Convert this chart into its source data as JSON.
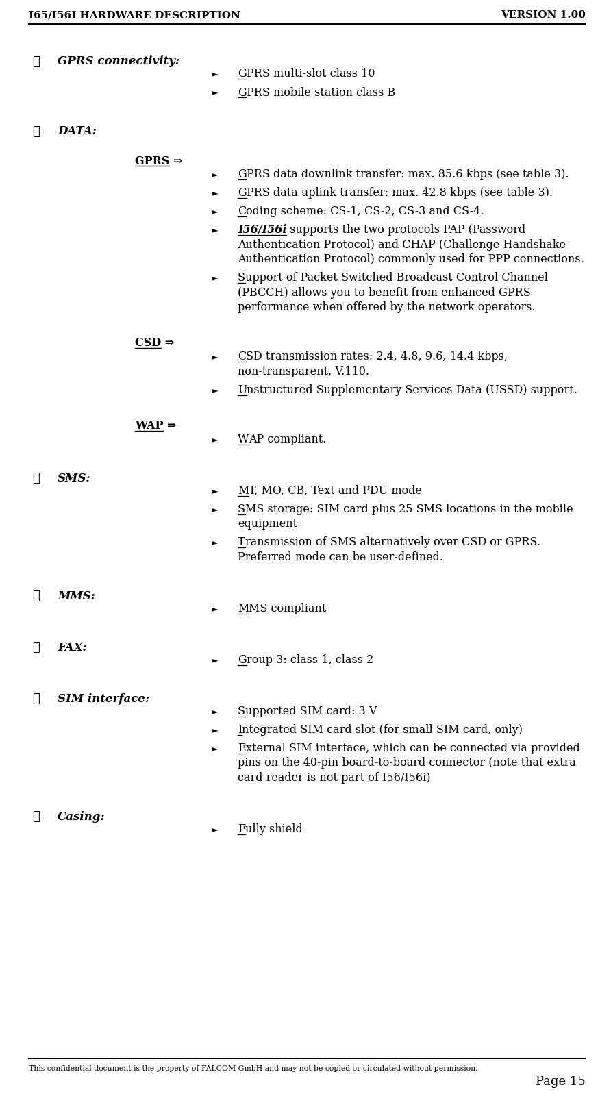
{
  "header_left": "I65/I56I HARDWARE DESCRIPTION",
  "header_right": "VERSION 1.00",
  "footer_note": "This confidential document is the property of FALCOM GmbH and may not be copied or circulated without permission.",
  "footer_page": "Page 15",
  "background_color": "#ffffff",
  "text_color": "#000000",
  "font_family": "DejaVu Serif",
  "header_fontsize": 11,
  "body_fontsize": 11.5,
  "sub_header_fontsize": 11.5,
  "sections": [
    {
      "type": "section_header",
      "text": "GPRS connectivity:"
    },
    {
      "type": "bullet",
      "text": "GPRS multi-slot class 10",
      "underline_first": 1
    },
    {
      "type": "bullet",
      "text": "GPRS mobile station class B",
      "underline_first": 1
    },
    {
      "type": "section_header",
      "text": "DATA:"
    },
    {
      "type": "sub_header",
      "text": "GPRS ⇒"
    },
    {
      "type": "bullet",
      "text": "GPRS data downlink transfer: max. 85.6 kbps (see table 3).",
      "underline_first": 1
    },
    {
      "type": "bullet",
      "text": "GPRS data uplink transfer: max. 42.8 kbps (see table 3).",
      "underline_first": 1
    },
    {
      "type": "bullet",
      "text": "Coding scheme: CS-1, CS-2, CS-3 and CS-4.",
      "underline_first": 1
    },
    {
      "type": "bullet",
      "text": "I56/I56i  supports the two protocols PAP (Password Authentication Protocol) and CHAP (Challenge Handshake Authentication Protocol) commonly used for PPP connections.",
      "underline_first_word": "I56/I56i",
      "italic_first_word": true
    },
    {
      "type": "bullet",
      "text": "Support of Packet Switched Broadcast Control Channel (PBCCH) allows you to benefit from enhanced GPRS performance when offered by the network operators.",
      "underline_first": 1
    },
    {
      "type": "sub_header",
      "text": "CSD ⇒"
    },
    {
      "type": "bullet",
      "text": "CSD transmission rates: 2.4, 4.8, 9.6, 14.4 kbps, non-transparent, V.110.",
      "underline_first": 1
    },
    {
      "type": "bullet",
      "text": "Unstructured Supplementary Services Data (USSD) support.",
      "underline_first": 1
    },
    {
      "type": "sub_header",
      "text": "WAP ⇒"
    },
    {
      "type": "bullet",
      "text": "WAP compliant.",
      "underline_first": 1
    },
    {
      "type": "section_header",
      "text": "SMS:"
    },
    {
      "type": "bullet",
      "text": "MT, MO, CB, Text and PDU mode",
      "underline_first": 1
    },
    {
      "type": "bullet",
      "text": "SMS storage: SIM card plus 25 SMS locations in the mobile equipment",
      "underline_first": 1
    },
    {
      "type": "bullet",
      "text": "Transmission of SMS alternatively over CSD or GPRS. Preferred mode can be user-defined.",
      "underline_first": 1
    },
    {
      "type": "section_header",
      "text": "MMS:"
    },
    {
      "type": "bullet",
      "text": "MMS compliant",
      "underline_first": 1
    },
    {
      "type": "section_header",
      "text": "FAX:"
    },
    {
      "type": "bullet",
      "text": "Group 3: class 1, class 2",
      "underline_first": 1
    },
    {
      "type": "section_header",
      "text": "SIM interface:"
    },
    {
      "type": "bullet",
      "text": "Supported SIM card: 3 V",
      "underline_first": 1
    },
    {
      "type": "bullet",
      "text": "Integrated SIM card slot (for small SIM card, only)",
      "underline_first": 1
    },
    {
      "type": "bullet",
      "text": "External SIM interface, which can be connected via provided pins on the 40-pin board-to-board connector (note that extra card reader is not part of I56/I56i)",
      "underline_first": 1
    },
    {
      "type": "section_header",
      "text": "Casing:"
    },
    {
      "type": "bullet",
      "text": "Fully shield",
      "underline_first": 1
    }
  ]
}
